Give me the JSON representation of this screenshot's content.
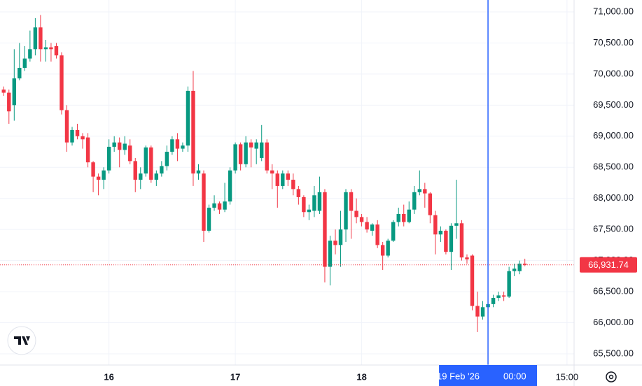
{
  "chart_data": {
    "type": "candlestick",
    "up_color": "#089981",
    "down_color": "#f23645",
    "xlim": [
      "2026-02-15T03:18",
      "2026-02-19T16:21"
    ],
    "ylim": [
      65320,
      71191
    ],
    "yticks": [
      {
        "value": 65500,
        "label": "65,500.00"
      },
      {
        "value": 66000,
        "label": "66,000.00"
      },
      {
        "value": 66500,
        "label": "66,500.00"
      },
      {
        "value": 67000,
        "label": "67,000.00"
      },
      {
        "value": 67500,
        "label": "67,500.00"
      },
      {
        "value": 68000,
        "label": "68,000.00"
      },
      {
        "value": 68500,
        "label": "68,500.00"
      },
      {
        "value": 69000,
        "label": "69,000.00"
      },
      {
        "value": 69500,
        "label": "69,500.00"
      },
      {
        "value": 70000,
        "label": "70,000.00"
      },
      {
        "value": 70500,
        "label": "70,500.00"
      },
      {
        "value": 71000,
        "label": "71,000.00"
      }
    ],
    "xticks": [
      {
        "value": "2026-02-16T00:00",
        "label": "16"
      },
      {
        "value": "2026-02-17T00:00",
        "label": "17"
      },
      {
        "value": "2026-02-18T00:00",
        "label": "18"
      },
      {
        "value": "2026-02-19T15:00",
        "label": "15:00"
      }
    ],
    "grid": true,
    "last_price": {
      "value": 66931.74,
      "label": "66,931.74",
      "color": "#f23645"
    },
    "crosshair": {
      "x": "2026-02-19T00:00",
      "date_label": "19 Feb '26",
      "time_label": "00:00",
      "color": "#2962ff"
    },
    "x": [
      "2026-02-15T04:00",
      "2026-02-15T05:00",
      "2026-02-15T06:00",
      "2026-02-15T07:00",
      "2026-02-15T08:00",
      "2026-02-15T09:00",
      "2026-02-15T10:00",
      "2026-02-15T11:00",
      "2026-02-15T12:00",
      "2026-02-15T13:00",
      "2026-02-15T14:00",
      "2026-02-15T15:00",
      "2026-02-15T16:00",
      "2026-02-15T17:00",
      "2026-02-15T18:00",
      "2026-02-15T19:00",
      "2026-02-15T20:00",
      "2026-02-15T21:00",
      "2026-02-15T22:00",
      "2026-02-15T23:00",
      "2026-02-16T00:00",
      "2026-02-16T01:00",
      "2026-02-16T02:00",
      "2026-02-16T03:00",
      "2026-02-16T04:00",
      "2026-02-16T05:00",
      "2026-02-16T06:00",
      "2026-02-16T07:00",
      "2026-02-16T08:00",
      "2026-02-16T09:00",
      "2026-02-16T10:00",
      "2026-02-16T11:00",
      "2026-02-16T12:00",
      "2026-02-16T13:00",
      "2026-02-16T14:00",
      "2026-02-16T15:00",
      "2026-02-16T16:00",
      "2026-02-16T17:00",
      "2026-02-16T18:00",
      "2026-02-16T19:00",
      "2026-02-16T20:00",
      "2026-02-16T21:00",
      "2026-02-16T22:00",
      "2026-02-16T23:00",
      "2026-02-17T00:00",
      "2026-02-17T01:00",
      "2026-02-17T02:00",
      "2026-02-17T03:00",
      "2026-02-17T04:00",
      "2026-02-17T05:00",
      "2026-02-17T06:00",
      "2026-02-17T07:00",
      "2026-02-17T08:00",
      "2026-02-17T09:00",
      "2026-02-17T10:00",
      "2026-02-17T11:00",
      "2026-02-17T12:00",
      "2026-02-17T13:00",
      "2026-02-17T14:00",
      "2026-02-17T15:00",
      "2026-02-17T16:00",
      "2026-02-17T17:00",
      "2026-02-17T18:00",
      "2026-02-17T19:00",
      "2026-02-17T20:00",
      "2026-02-17T21:00",
      "2026-02-17T22:00",
      "2026-02-17T23:00",
      "2026-02-18T00:00",
      "2026-02-18T01:00",
      "2026-02-18T02:00",
      "2026-02-18T03:00",
      "2026-02-18T04:00",
      "2026-02-18T05:00",
      "2026-02-18T06:00",
      "2026-02-18T07:00",
      "2026-02-18T08:00",
      "2026-02-18T09:00",
      "2026-02-18T10:00",
      "2026-02-18T11:00",
      "2026-02-18T12:00",
      "2026-02-18T13:00",
      "2026-02-18T14:00",
      "2026-02-18T15:00",
      "2026-02-18T16:00",
      "2026-02-18T17:00",
      "2026-02-18T18:00",
      "2026-02-18T19:00",
      "2026-02-18T20:00",
      "2026-02-18T21:00",
      "2026-02-18T22:00",
      "2026-02-18T23:00",
      "2026-02-19T00:00",
      "2026-02-19T01:00",
      "2026-02-19T02:00",
      "2026-02-19T03:00",
      "2026-02-19T04:00",
      "2026-02-19T05:00",
      "2026-02-19T06:00",
      "2026-02-19T07:00"
    ],
    "candles": [
      [
        69750,
        69800,
        69650,
        69700
      ],
      [
        69700,
        69750,
        69200,
        69400
      ],
      [
        69500,
        70400,
        69250,
        69930
      ],
      [
        69930,
        70500,
        69900,
        70100
      ],
      [
        70100,
        70450,
        70050,
        70250
      ],
      [
        70250,
        70700,
        70200,
        70400
      ],
      [
        70400,
        70900,
        70300,
        70750
      ],
      [
        70750,
        70950,
        70200,
        70400
      ],
      [
        70400,
        70550,
        70200,
        70430
      ],
      [
        70430,
        70500,
        70200,
        70400
      ],
      [
        70450,
        70500,
        70250,
        70300
      ],
      [
        70300,
        70350,
        69350,
        69420
      ],
      [
        69420,
        69500,
        68750,
        68900
      ],
      [
        68900,
        69150,
        68850,
        69100
      ],
      [
        69100,
        69200,
        68950,
        69000
      ],
      [
        69000,
        69050,
        68800,
        68950
      ],
      [
        68980,
        69050,
        68500,
        68580
      ],
      [
        68580,
        68600,
        68100,
        68350
      ],
      [
        68350,
        68400,
        68050,
        68300
      ],
      [
        68300,
        68500,
        68150,
        68450
      ],
      [
        68450,
        68950,
        68400,
        68830
      ],
      [
        68830,
        69000,
        68750,
        68900
      ],
      [
        68900,
        68980,
        68500,
        68780
      ],
      [
        68780,
        69000,
        68700,
        68880
      ],
      [
        68850,
        68950,
        68550,
        68600
      ],
      [
        68600,
        68650,
        68100,
        68300
      ],
      [
        68300,
        68500,
        68150,
        68400
      ],
      [
        68400,
        68850,
        68350,
        68820
      ],
      [
        68820,
        68850,
        68250,
        68300
      ],
      [
        68300,
        68450,
        68200,
        68400
      ],
      [
        68400,
        68600,
        68350,
        68520
      ],
      [
        68520,
        68850,
        68450,
        68750
      ],
      [
        68750,
        69000,
        68700,
        68950
      ],
      [
        68950,
        69050,
        68600,
        68800
      ],
      [
        68800,
        68900,
        68750,
        68850
      ],
      [
        68850,
        69800,
        68750,
        69730
      ],
      [
        69730,
        70050,
        68200,
        68400
      ],
      [
        68400,
        68550,
        68300,
        68450
      ],
      [
        68400,
        68450,
        67300,
        67480
      ],
      [
        67480,
        67900,
        67450,
        67850
      ],
      [
        67850,
        68050,
        67800,
        67920
      ],
      [
        67920,
        67950,
        67750,
        67820
      ],
      [
        67820,
        68250,
        67780,
        67950
      ],
      [
        67950,
        68500,
        67900,
        68450
      ],
      [
        68450,
        68900,
        68400,
        68870
      ],
      [
        68870,
        68900,
        68450,
        68550
      ],
      [
        68550,
        69000,
        68500,
        68900
      ],
      [
        68900,
        68950,
        68500,
        68820
      ],
      [
        68800,
        68950,
        68550,
        68900
      ],
      [
        68650,
        69180,
        68600,
        68900
      ],
      [
        68900,
        68950,
        68400,
        68450
      ],
      [
        68450,
        68550,
        68150,
        68400
      ],
      [
        68400,
        68450,
        67850,
        68200
      ],
      [
        68200,
        68450,
        68150,
        68400
      ],
      [
        68400,
        68450,
        68200,
        68300
      ],
      [
        68300,
        68400,
        68050,
        68150
      ],
      [
        68150,
        68200,
        67900,
        68020
      ],
      [
        68020,
        68050,
        67700,
        67780
      ],
      [
        67780,
        67900,
        67650,
        67820
      ],
      [
        67800,
        68200,
        67700,
        68050
      ],
      [
        67800,
        68350,
        67750,
        68100
      ],
      [
        68100,
        68150,
        66650,
        66900
      ],
      [
        66900,
        67400,
        66600,
        67320
      ],
      [
        67320,
        67500,
        67100,
        67250
      ],
      [
        67250,
        67800,
        66900,
        67500
      ],
      [
        67500,
        68150,
        67300,
        68100
      ],
      [
        68100,
        68150,
        67350,
        67800
      ],
      [
        67800,
        68000,
        67600,
        67700
      ],
      [
        67700,
        67750,
        67550,
        67620
      ],
      [
        67620,
        67700,
        67450,
        67500
      ],
      [
        67480,
        67600,
        67400,
        67580
      ],
      [
        67580,
        67650,
        67200,
        67250
      ],
      [
        67250,
        67300,
        66850,
        67080
      ],
      [
        67080,
        67350,
        67050,
        67320
      ],
      [
        67320,
        67650,
        67300,
        67620
      ],
      [
        67620,
        67850,
        67550,
        67750
      ],
      [
        67750,
        67900,
        67550,
        67620
      ],
      [
        67620,
        67950,
        67600,
        67820
      ],
      [
        67820,
        68200,
        67750,
        68100
      ],
      [
        68100,
        68450,
        68050,
        68150
      ],
      [
        68150,
        68250,
        67850,
        68080
      ],
      [
        68080,
        68100,
        67600,
        67730
      ],
      [
        67730,
        67800,
        67100,
        67420
      ],
      [
        67420,
        67550,
        67300,
        67480
      ],
      [
        67480,
        67500,
        67100,
        67140
      ],
      [
        67140,
        67600,
        66850,
        67560
      ],
      [
        67560,
        68300,
        67350,
        67600
      ],
      [
        67600,
        67650,
        67000,
        67050
      ],
      [
        67050,
        67100,
        66950,
        67020
      ],
      [
        67080,
        67100,
        66200,
        66270
      ],
      [
        66270,
        66500,
        65850,
        66100
      ],
      [
        66100,
        66350,
        66050,
        66250
      ],
      [
        66250,
        66450,
        66150,
        66300
      ],
      [
        66300,
        66450,
        66250,
        66400
      ],
      [
        66400,
        66500,
        66350,
        66440
      ],
      [
        66440,
        66500,
        66350,
        66420
      ],
      [
        66420,
        66900,
        66400,
        66830
      ],
      [
        66830,
        66950,
        66750,
        66870
      ],
      [
        66830,
        67000,
        66780,
        66950
      ],
      [
        66950,
        67030,
        66910,
        66931.74
      ]
    ]
  }
}
